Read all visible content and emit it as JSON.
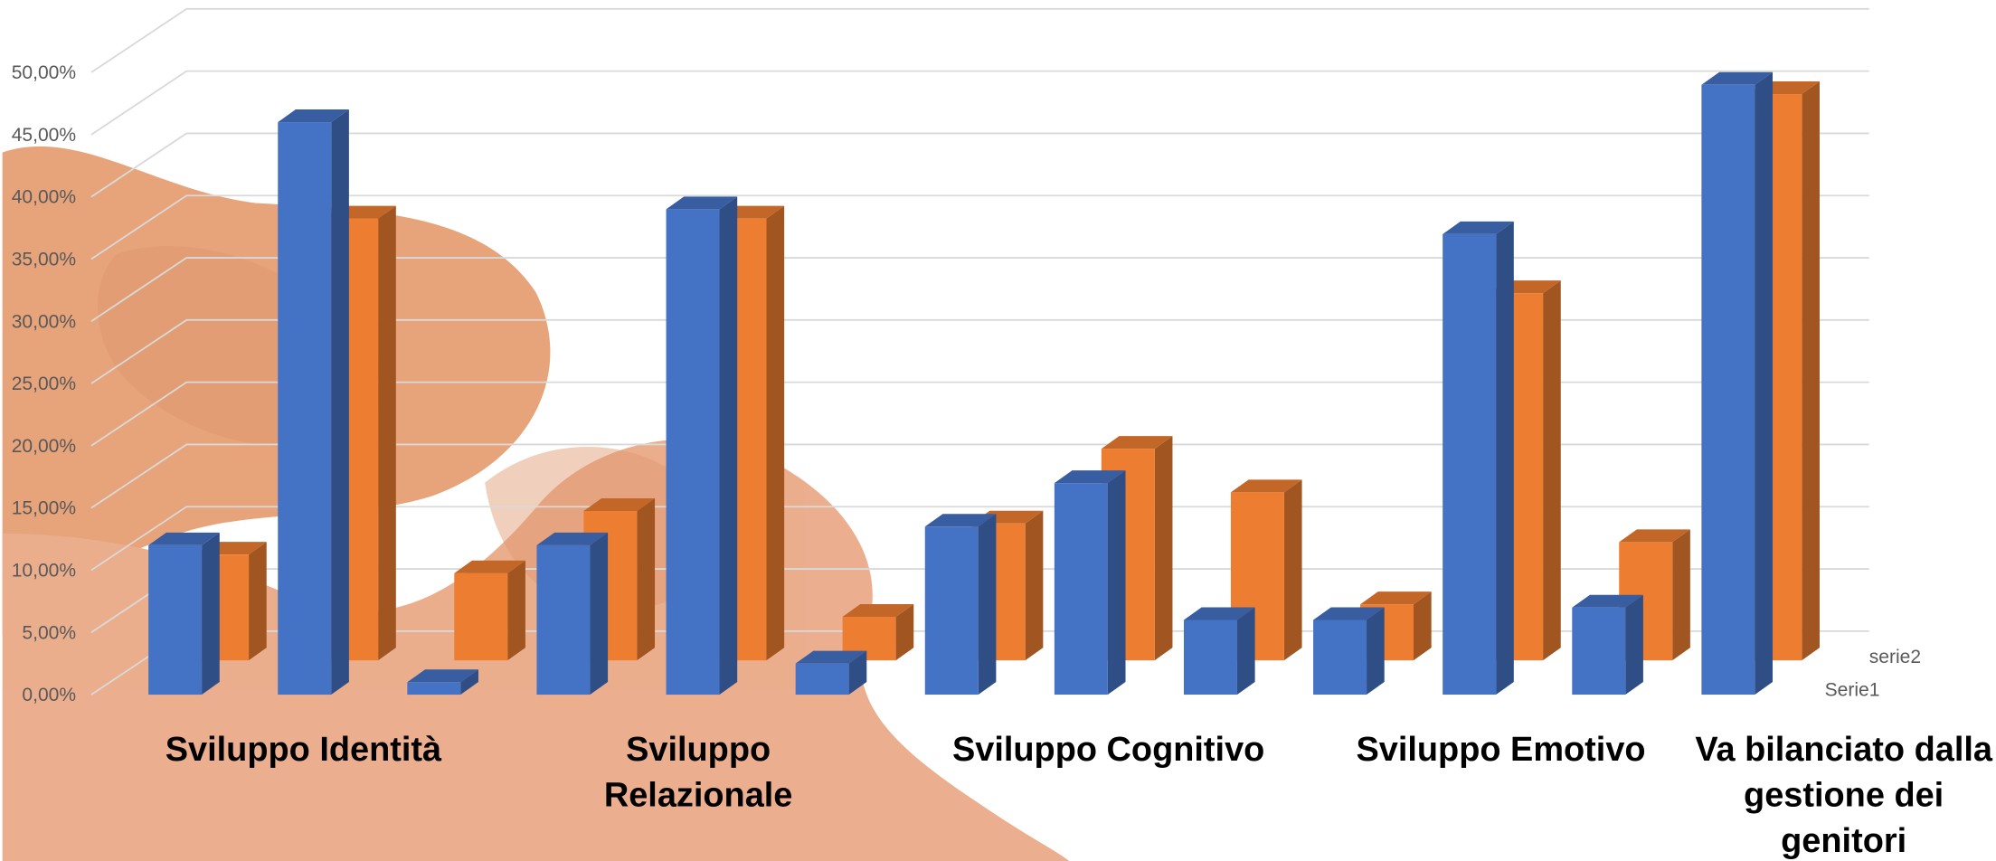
{
  "chart_data": {
    "type": "bar3d",
    "categories": [
      null,
      null,
      null,
      null,
      null,
      null,
      null,
      null,
      null,
      null,
      null,
      null,
      null
    ],
    "series": [
      {
        "name": "Serie1",
        "color": "#4472c4",
        "values": [
          12,
          46,
          1,
          12,
          39,
          2.5,
          13.5,
          17,
          6,
          6,
          37,
          7,
          49
        ]
      },
      {
        "name": "serie2",
        "color": "#ed7d31",
        "values": [
          8.5,
          35.5,
          7,
          12,
          35.5,
          3.5,
          11,
          17,
          13.5,
          4.5,
          29.5,
          9.5,
          45.5
        ]
      }
    ],
    "ylim": [
      0,
      50
    ],
    "yticks": [
      {
        "value": 0,
        "label": "0,00%"
      },
      {
        "value": 5,
        "label": "5,00%"
      },
      {
        "value": 10,
        "label": "10,00%"
      },
      {
        "value": 15,
        "label": "15,00%"
      },
      {
        "value": 20,
        "label": "20,00%"
      },
      {
        "value": 25,
        "label": "25,00%"
      },
      {
        "value": 30,
        "label": "30,00%"
      },
      {
        "value": 35,
        "label": "35,00%"
      },
      {
        "value": 40,
        "label": "40,00%"
      },
      {
        "value": 45,
        "label": "45,00%"
      },
      {
        "value": 50,
        "label": "50,00%"
      }
    ],
    "grid": true,
    "annotations": [
      {
        "lines": [
          "Sviluppo Identità"
        ]
      },
      {
        "lines": [
          "Sviluppo",
          "Relazionale"
        ]
      },
      {
        "lines": [
          "Sviluppo Cognitivo"
        ]
      },
      {
        "lines": [
          "Sviluppo Emotivo"
        ]
      },
      {
        "lines": [
          "Va bilanciato dalla",
          "gestione dei",
          "genitori"
        ]
      }
    ]
  }
}
